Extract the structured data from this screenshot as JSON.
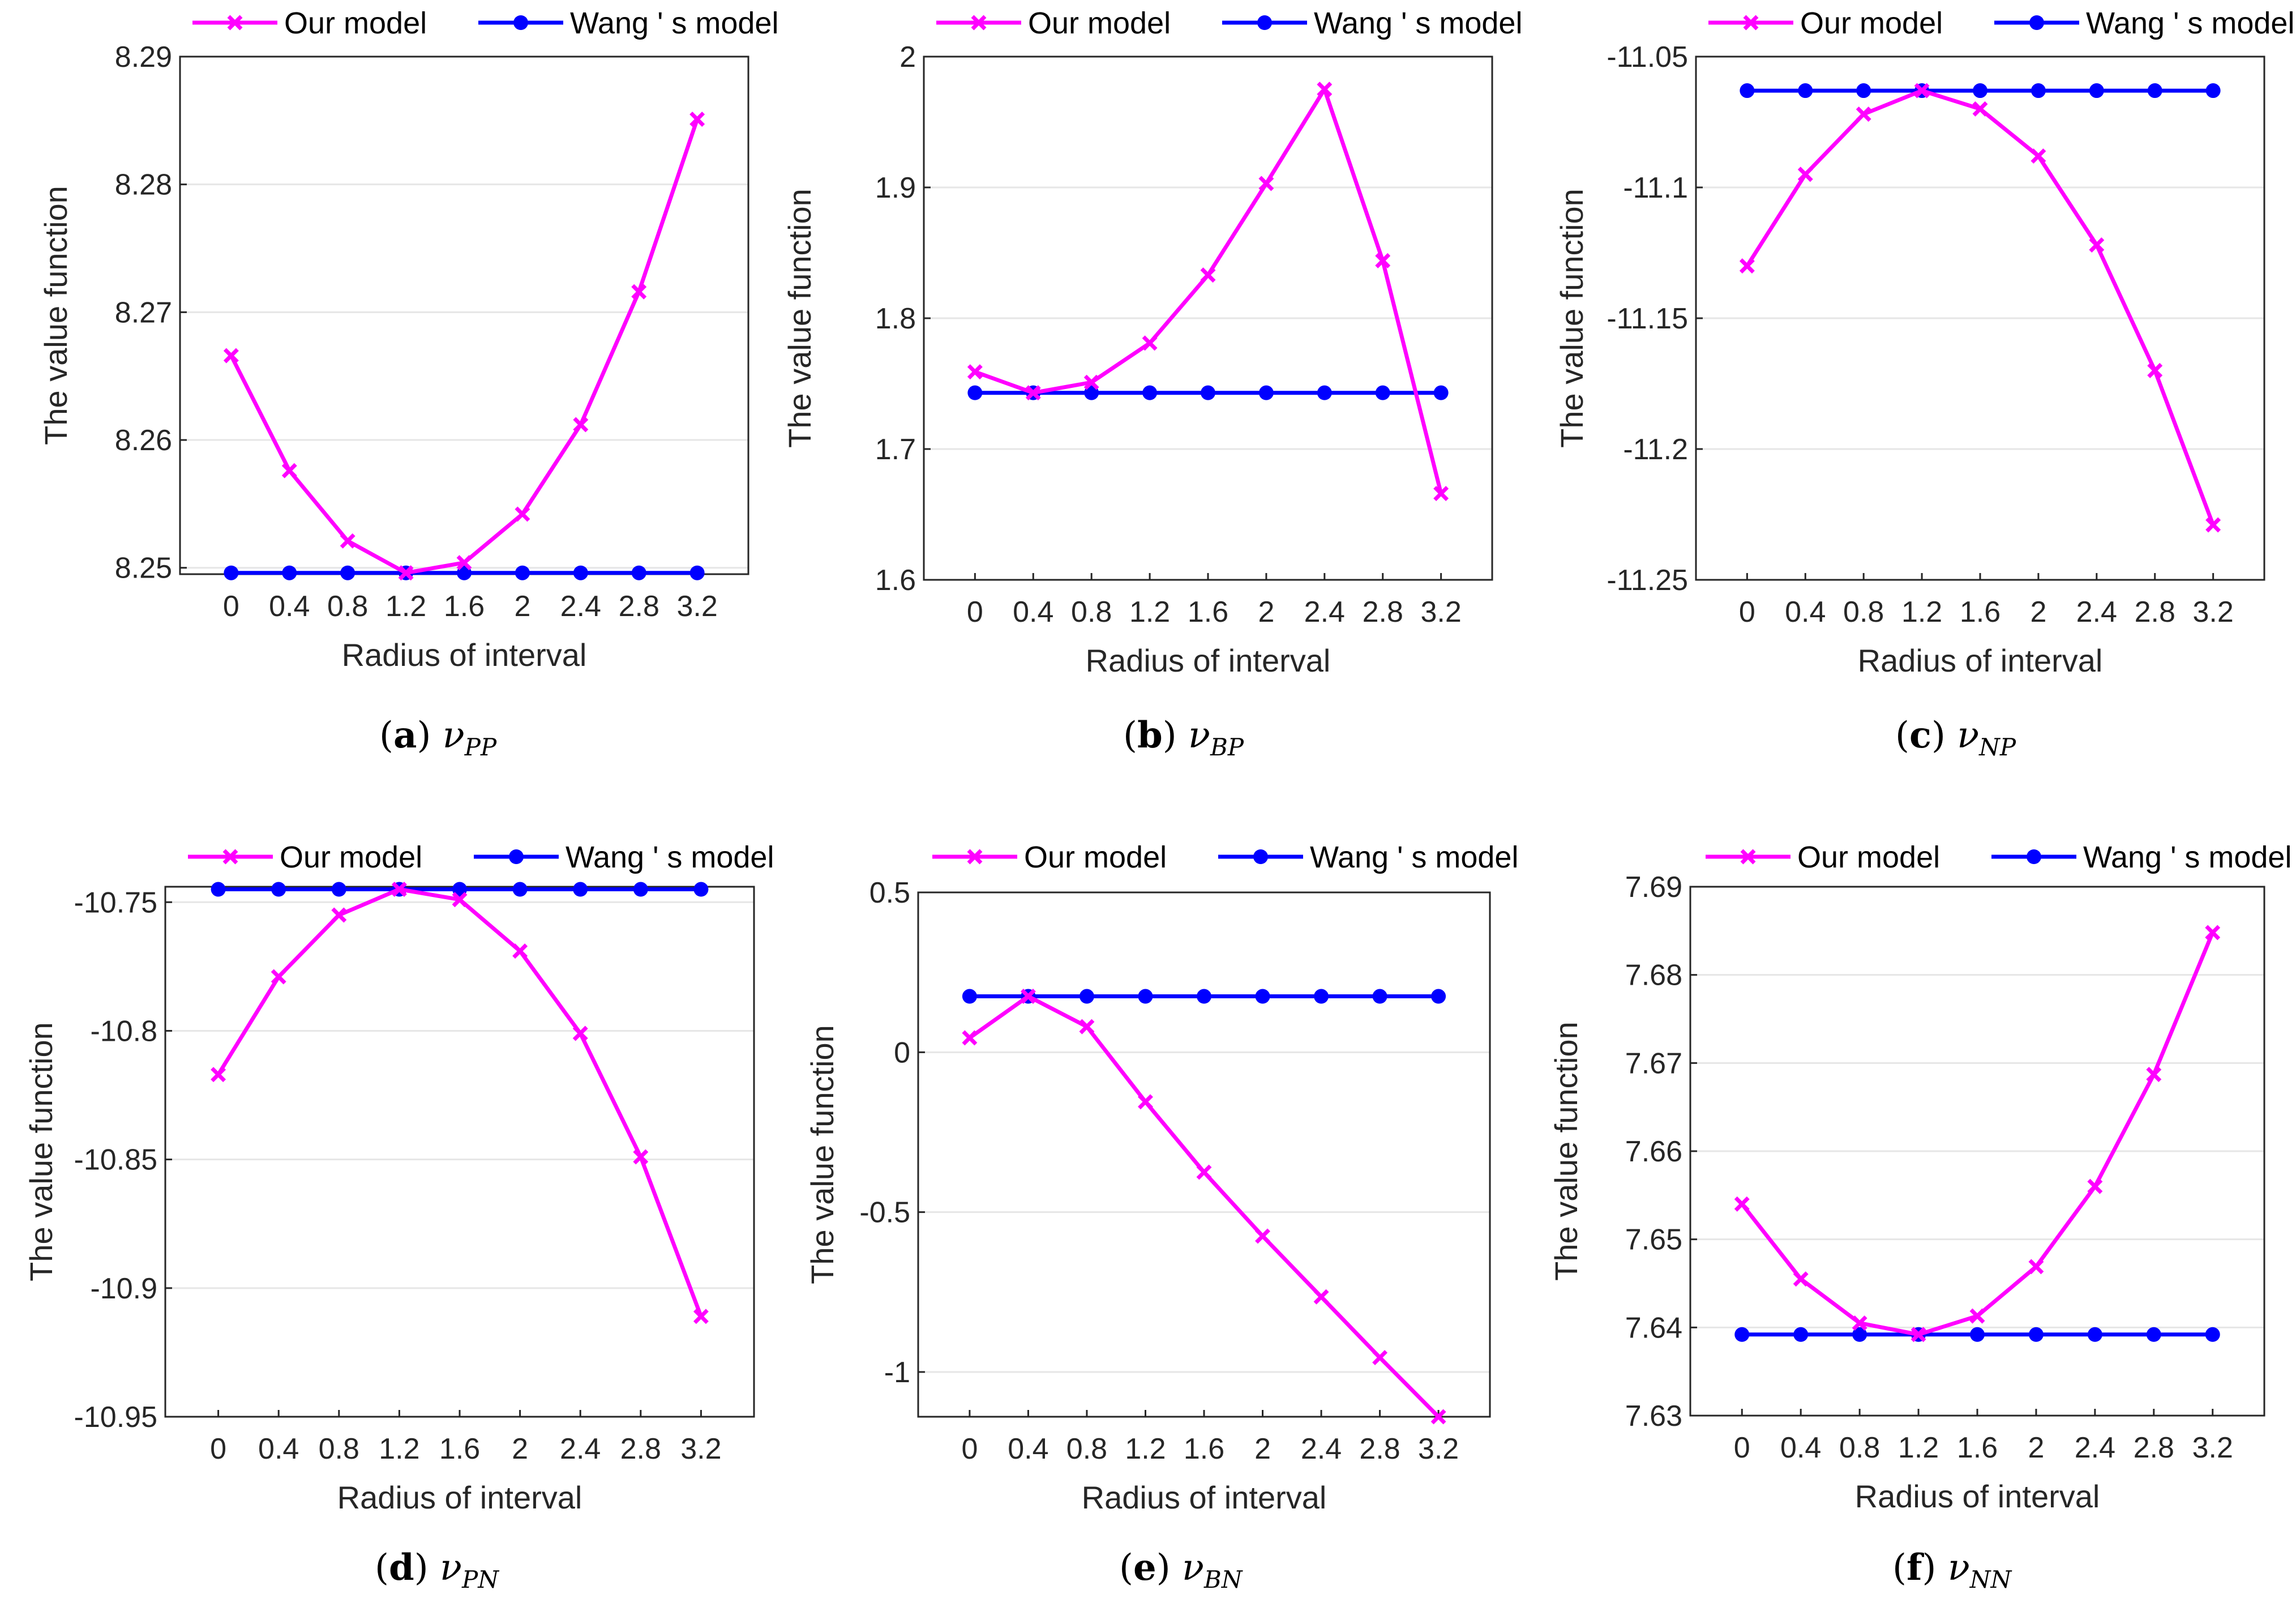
{
  "legend": {
    "our": "Our model",
    "wang": "Wang ' s model"
  },
  "colors": {
    "our": "#ff00ff",
    "wang": "#0000ff",
    "grid": "#e6e6e6",
    "axis": "#262626"
  },
  "chart_data": [
    {
      "type": "line",
      "id": "a",
      "caption": {
        "letter": "a",
        "symbol": "ν",
        "subscript": "PP"
      },
      "xlabel": "Radius of interval",
      "ylabel": "The value function",
      "categories": [
        "0",
        "0.4",
        "0.8",
        "1.2",
        "1.6",
        "2",
        "2.4",
        "2.8",
        "3.2"
      ],
      "ylim": [
        8.2495,
        8.29
      ],
      "yticks": [
        "8.25",
        "8.26",
        "8.27",
        "8.28",
        "8.29"
      ],
      "ytick_values": [
        8.25,
        8.26,
        8.27,
        8.28,
        8.29
      ],
      "series": [
        {
          "name": "Our model",
          "values": [
            8.2666,
            8.2576,
            8.2521,
            8.2496,
            8.2504,
            8.2542,
            8.2612,
            8.2716,
            8.2851
          ]
        },
        {
          "name": "Wang ' s model",
          "values": [
            8.2496,
            8.2496,
            8.2496,
            8.2496,
            8.2496,
            8.2496,
            8.2496,
            8.2496,
            8.2496
          ]
        }
      ]
    },
    {
      "type": "line",
      "id": "b",
      "caption": {
        "letter": "b",
        "symbol": "ν",
        "subscript": "BP"
      },
      "xlabel": "Radius of interval",
      "ylabel": "The value function",
      "categories": [
        "0",
        "0.4",
        "0.8",
        "1.2",
        "1.6",
        "2",
        "2.4",
        "2.8",
        "3.2"
      ],
      "ylim": [
        1.6,
        2.0
      ],
      "yticks": [
        "1.6",
        "1.7",
        "1.8",
        "1.9",
        "2"
      ],
      "ytick_values": [
        1.6,
        1.7,
        1.8,
        1.9,
        2.0
      ],
      "series": [
        {
          "name": "Our model",
          "values": [
            1.759,
            1.743,
            1.751,
            1.781,
            1.833,
            1.903,
            1.975,
            1.844,
            1.666
          ]
        },
        {
          "name": "Wang ' s model",
          "values": [
            1.743,
            1.743,
            1.743,
            1.743,
            1.743,
            1.743,
            1.743,
            1.743,
            1.743
          ]
        }
      ]
    },
    {
      "type": "line",
      "id": "c",
      "caption": {
        "letter": "c",
        "symbol": "ν",
        "subscript": "NP"
      },
      "xlabel": "Radius of interval",
      "ylabel": "The value function",
      "categories": [
        "0",
        "0.4",
        "0.8",
        "1.2",
        "1.6",
        "2",
        "2.4",
        "2.8",
        "3.2"
      ],
      "ylim": [
        -11.25,
        -11.05
      ],
      "yticks": [
        "-11.25",
        "-11.2",
        "-11.15",
        "-11.1",
        "-11.05"
      ],
      "ytick_values": [
        -11.25,
        -11.2,
        -11.15,
        -11.1,
        -11.05
      ],
      "series": [
        {
          "name": "Our model",
          "values": [
            -11.13,
            -11.095,
            -11.072,
            -11.063,
            -11.07,
            -11.088,
            -11.122,
            -11.17,
            -11.229
          ]
        },
        {
          "name": "Wang ' s model",
          "values": [
            -11.063,
            -11.063,
            -11.063,
            -11.063,
            -11.063,
            -11.063,
            -11.063,
            -11.063,
            -11.063
          ]
        }
      ]
    },
    {
      "type": "line",
      "id": "d",
      "caption": {
        "letter": "d",
        "symbol": "ν",
        "subscript": "PN"
      },
      "xlabel": "Radius of interval",
      "ylabel": "The value function",
      "categories": [
        "0",
        "0.4",
        "0.8",
        "1.2",
        "1.6",
        "2",
        "2.4",
        "2.8",
        "3.2"
      ],
      "ylim": [
        -10.95,
        -10.744
      ],
      "yticks": [
        "-10.95",
        "-10.9",
        "-10.85",
        "-10.8",
        "-10.75"
      ],
      "ytick_values": [
        -10.95,
        -10.9,
        -10.85,
        -10.8,
        -10.75
      ],
      "series": [
        {
          "name": "Our model",
          "values": [
            -10.817,
            -10.779,
            -10.755,
            -10.745,
            -10.749,
            -10.769,
            -10.801,
            -10.849,
            -10.911
          ]
        },
        {
          "name": "Wang ' s model",
          "values": [
            -10.745,
            -10.745,
            -10.745,
            -10.745,
            -10.745,
            -10.745,
            -10.745,
            -10.745,
            -10.745
          ]
        }
      ]
    },
    {
      "type": "line",
      "id": "e",
      "caption": {
        "letter": "e",
        "symbol": "ν",
        "subscript": "BN"
      },
      "xlabel": "Radius of interval",
      "ylabel": "The value function",
      "categories": [
        "0",
        "0.4",
        "0.8",
        "1.2",
        "1.6",
        "2",
        "2.4",
        "2.8",
        "3.2"
      ],
      "ylim": [
        -1.14,
        0.5
      ],
      "yticks": [
        "-1",
        "-0.5",
        "0",
        "0.5"
      ],
      "ytick_values": [
        -1,
        -0.5,
        0,
        0.5
      ],
      "series": [
        {
          "name": "Our model",
          "values": [
            0.045,
            0.175,
            0.08,
            -0.155,
            -0.375,
            -0.575,
            -0.765,
            -0.955,
            -1.14
          ]
        },
        {
          "name": "Wang ' s model",
          "values": [
            0.175,
            0.175,
            0.175,
            0.175,
            0.175,
            0.175,
            0.175,
            0.175,
            0.175
          ]
        }
      ]
    },
    {
      "type": "line",
      "id": "f",
      "caption": {
        "letter": "f",
        "symbol": "ν",
        "subscript": "NN"
      },
      "xlabel": "Radius of interval",
      "ylabel": "The value function",
      "categories": [
        "0",
        "0.4",
        "0.8",
        "1.2",
        "1.6",
        "2",
        "2.4",
        "2.8",
        "3.2"
      ],
      "ylim": [
        7.63,
        7.69
      ],
      "yticks": [
        "7.63",
        "7.64",
        "7.65",
        "7.66",
        "7.67",
        "7.68",
        "7.69"
      ],
      "ytick_values": [
        7.63,
        7.64,
        7.65,
        7.66,
        7.67,
        7.68,
        7.69
      ],
      "series": [
        {
          "name": "Our model",
          "values": [
            7.654,
            7.6455,
            7.6405,
            7.6392,
            7.6413,
            7.6469,
            7.656,
            7.6687,
            7.6848
          ]
        },
        {
          "name": "Wang ' s model",
          "values": [
            7.6392,
            7.6392,
            7.6392,
            7.6392,
            7.6392,
            7.6392,
            7.6392,
            7.6392,
            7.6392
          ]
        }
      ]
    }
  ]
}
